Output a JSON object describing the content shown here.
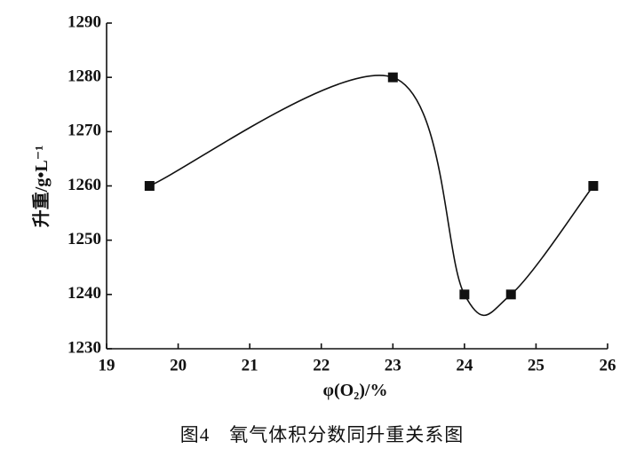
{
  "chart_data": {
    "type": "line",
    "x": [
      19.6,
      23.0,
      24.0,
      24.65,
      25.8
    ],
    "series": [
      {
        "values": [
          1260,
          1280,
          1240,
          1240,
          1260
        ]
      }
    ],
    "xlim": [
      19,
      26
    ],
    "ylim": [
      1230,
      1290
    ],
    "x_ticks": [
      19,
      20,
      21,
      22,
      23,
      24,
      25,
      26
    ],
    "y_ticks": [
      1230,
      1240,
      1250,
      1260,
      1270,
      1280,
      1290
    ],
    "xlabel": "φ(O₂)/%",
    "ylabel": "升重/g•L⁻¹",
    "curve": "smooth",
    "marker": "square",
    "grid": false
  },
  "caption": "图4　氧气体积分数同升重关系图"
}
